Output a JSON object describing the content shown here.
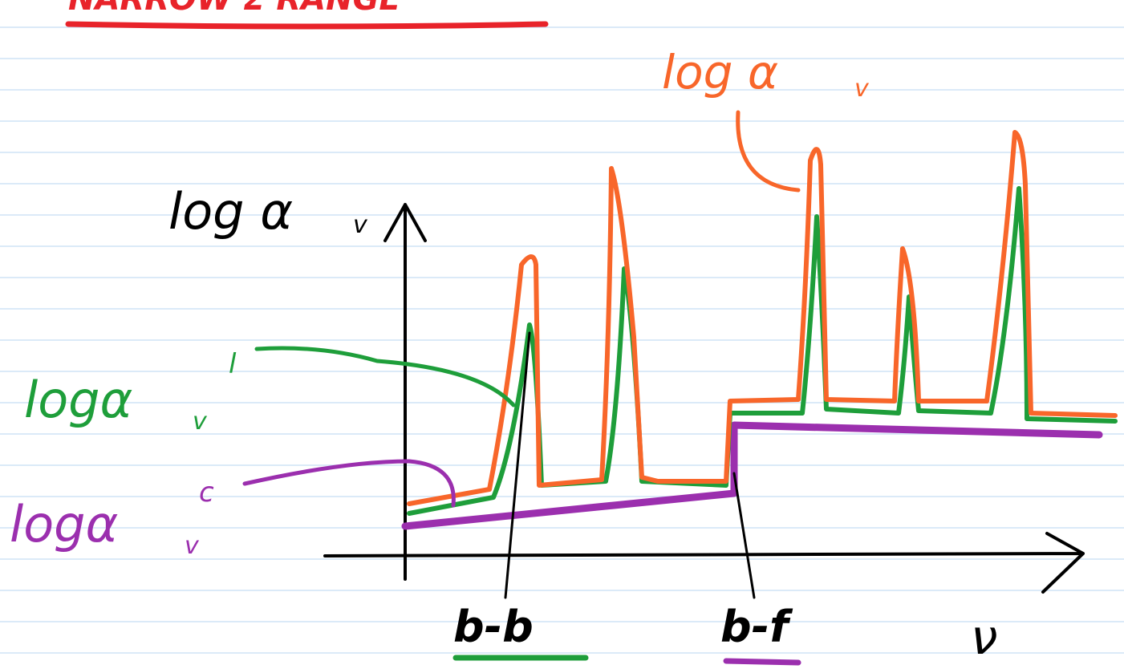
{
  "title": "NARROW Σ RANGE",
  "axis": {
    "y_label": {
      "text": "log α",
      "sub": "v"
    },
    "x_label": "ν"
  },
  "curves": [
    {
      "text": "log α",
      "sub": "v",
      "sup": ""
    },
    {
      "text": "logα",
      "sub": "v",
      "sup": "l"
    },
    {
      "text": "logα",
      "sub": "v",
      "sup": "c"
    }
  ],
  "features": [
    "b-b",
    "b-f"
  ]
}
